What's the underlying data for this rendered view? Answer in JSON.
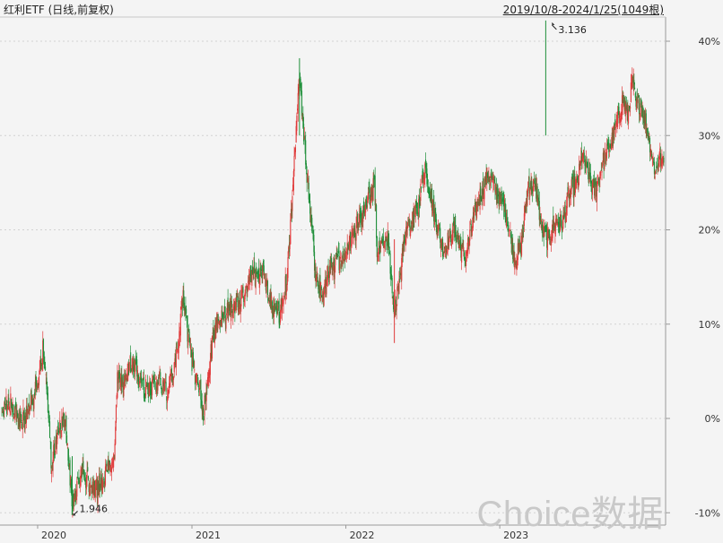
{
  "header": {
    "title": "红利ETF (日线,前复权)",
    "range": "2019/10/8-2024/1/25(1049根)"
  },
  "watermark": "Choice数据",
  "chart_data": {
    "type": "candlestick",
    "title": "红利ETF (日线,前复权)",
    "period": "2019/10/8-2024/1/25",
    "bar_count": 1049,
    "y_axis": {
      "unit": "%",
      "position": "right",
      "ticks": [
        40,
        30,
        20,
        10,
        0,
        -10
      ],
      "tick_labels": [
        "40%",
        "30%",
        "20%",
        "10%",
        "0%",
        "-10%"
      ],
      "ylim": [
        -11,
        44
      ]
    },
    "x_axis": {
      "ticks": [
        "2020",
        "2021",
        "2022",
        "2023"
      ],
      "range": [
        "2019-10-08",
        "2024-01-25"
      ]
    },
    "annotations": [
      {
        "label": "3.136",
        "x": "2023-04-20",
        "y": 42.2,
        "kind": "high"
      },
      {
        "label": "1.946",
        "x": "2020-03-23",
        "y": -10.2,
        "kind": "low"
      }
    ],
    "up_color": "#e03a3a",
    "down_color": "#1f8f3a",
    "grid": "horizontal dashed",
    "close_path": [
      [
        "2019-10-08",
        0.5
      ],
      [
        "2019-10-25",
        2
      ],
      [
        "2019-11-20",
        -0.5
      ],
      [
        "2019-12-10",
        0.8
      ],
      [
        "2020-01-03",
        4
      ],
      [
        "2020-01-14",
        7.5
      ],
      [
        "2020-01-22",
        3
      ],
      [
        "2020-02-03",
        -5
      ],
      [
        "2020-02-20",
        -1
      ],
      [
        "2020-03-05",
        0
      ],
      [
        "2020-03-23",
        -9
      ],
      [
        "2020-04-15",
        -6
      ],
      [
        "2020-05-20",
        -7.5
      ],
      [
        "2020-06-20",
        -5
      ],
      [
        "2020-07-01",
        -4
      ],
      [
        "2020-07-08",
        5
      ],
      [
        "2020-07-20",
        3
      ],
      [
        "2020-08-10",
        6
      ],
      [
        "2020-09-10",
        3
      ],
      [
        "2020-10-15",
        4
      ],
      [
        "2020-11-05",
        2.5
      ],
      [
        "2020-12-01",
        8
      ],
      [
        "2020-12-10",
        13
      ],
      [
        "2020-12-25",
        8
      ],
      [
        "2021-01-05",
        5
      ],
      [
        "2021-01-20",
        3
      ],
      [
        "2021-01-28",
        0.5
      ],
      [
        "2021-02-05",
        3
      ],
      [
        "2021-02-20",
        9
      ],
      [
        "2021-03-15",
        11
      ],
      [
        "2021-04-20",
        12
      ],
      [
        "2021-05-20",
        15
      ],
      [
        "2021-06-20",
        15.5
      ],
      [
        "2021-07-10",
        12
      ],
      [
        "2021-07-28",
        11
      ],
      [
        "2021-08-15",
        15
      ],
      [
        "2021-08-28",
        24
      ],
      [
        "2021-09-08",
        33
      ],
      [
        "2021-09-13",
        37
      ],
      [
        "2021-09-22",
        30
      ],
      [
        "2021-10-05",
        24
      ],
      [
        "2021-10-20",
        16
      ],
      [
        "2021-11-05",
        13
      ],
      [
        "2021-12-01",
        16
      ],
      [
        "2021-12-25",
        17
      ],
      [
        "2022-01-15",
        19
      ],
      [
        "2022-02-15",
        22
      ],
      [
        "2022-03-10",
        25
      ],
      [
        "2022-03-16",
        18
      ],
      [
        "2022-04-10",
        19
      ],
      [
        "2022-04-26",
        11
      ],
      [
        "2022-05-20",
        19
      ],
      [
        "2022-06-20",
        22
      ],
      [
        "2022-07-07",
        27
      ],
      [
        "2022-07-28",
        22
      ],
      [
        "2022-08-20",
        18
      ],
      [
        "2022-09-15",
        20
      ],
      [
        "2022-10-10",
        17
      ],
      [
        "2022-11-10",
        23
      ],
      [
        "2022-12-05",
        26
      ],
      [
        "2022-12-25",
        24
      ],
      [
        "2023-01-15",
        22
      ],
      [
        "2023-02-05",
        17
      ],
      [
        "2023-02-20",
        18
      ],
      [
        "2023-03-10",
        25
      ],
      [
        "2023-03-30",
        24
      ],
      [
        "2023-04-10",
        20
      ],
      [
        "2023-04-25",
        19
      ],
      [
        "2023-05-15",
        21
      ],
      [
        "2023-05-30",
        20.5
      ],
      [
        "2023-06-15",
        24
      ],
      [
        "2023-07-05",
        25
      ],
      [
        "2023-07-15",
        28
      ],
      [
        "2023-08-05",
        25
      ],
      [
        "2023-08-15",
        24
      ],
      [
        "2023-09-01",
        27
      ],
      [
        "2023-09-20",
        29
      ],
      [
        "2023-10-05",
        31
      ],
      [
        "2023-10-20",
        34
      ],
      [
        "2023-11-01",
        32
      ],
      [
        "2023-11-12",
        36
      ],
      [
        "2023-11-20",
        33
      ],
      [
        "2023-12-01",
        33.5
      ],
      [
        "2023-12-20",
        30
      ],
      [
        "2024-01-05",
        26
      ],
      [
        "2024-01-15",
        28
      ],
      [
        "2024-01-20",
        27
      ],
      [
        "2024-01-25",
        28
      ]
    ]
  }
}
